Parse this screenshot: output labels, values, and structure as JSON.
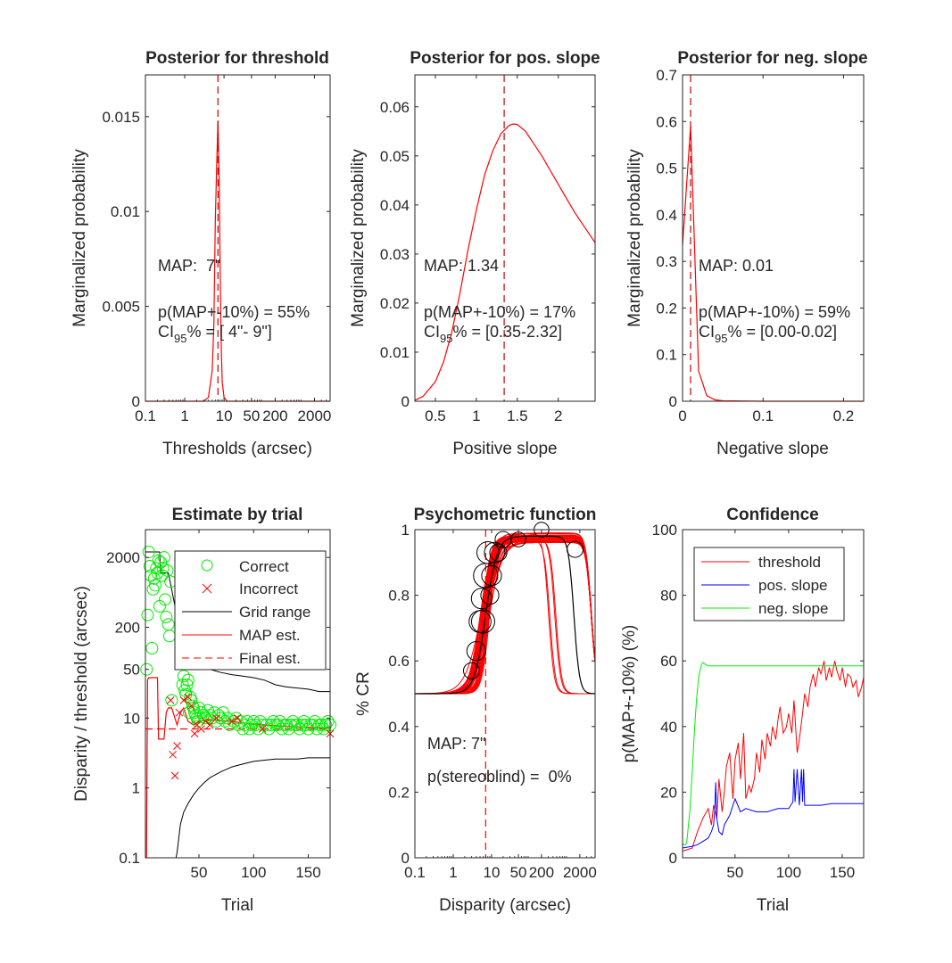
{
  "chart_data": [
    {
      "type": "line",
      "title": "Posterior for threshold",
      "xlabel": "Thresholds (arcsec)",
      "ylabel": "Marginalized probability",
      "xscale": "log",
      "xlim": [
        0.1,
        5000
      ],
      "ylim": [
        0,
        0.0172
      ],
      "xticks": [
        0.1,
        1,
        10,
        50,
        200,
        2000
      ],
      "xticklabels": [
        "0.1",
        "1",
        "10",
        "50",
        "200",
        "2000"
      ],
      "yticks": [
        0,
        0.005,
        0.01,
        0.015
      ],
      "yticklabels": [
        "0",
        "0.005",
        "0.01",
        "0.015"
      ],
      "series": [
        {
          "color": "#ff0000",
          "x": [
            0.1,
            1,
            3,
            4,
            5,
            5.5,
            6,
            6.5,
            7,
            7.5,
            8,
            8.5,
            9,
            10,
            12,
            20,
            100,
            5000
          ],
          "y": [
            0,
            0,
            0,
            0.0002,
            0.0016,
            0.004,
            0.0095,
            0.0125,
            0.0148,
            0.0118,
            0.0068,
            0.0028,
            0.001,
            0.0002,
            0,
            0,
            0,
            0
          ]
        }
      ],
      "vline": {
        "x": 7,
        "color": "#cc0000",
        "style": "dashed"
      },
      "annotations": {
        "map": "MAP:  7\"",
        "pmap": "p(MAP+-10%) = 55%",
        "ci_prefix": "CI",
        "ci_sub": "95",
        "ci_rest": "% = [ 4\"- 9\"]"
      },
      "grid": false
    },
    {
      "type": "line",
      "title": "Posterior for pos. slope",
      "xlabel": "Positive slope",
      "ylabel": "Marginalized probability",
      "xscale": "linear",
      "xlim": [
        0.25,
        2.45
      ],
      "ylim": [
        0,
        0.0665
      ],
      "xticks": [
        0.5,
        1,
        1.5,
        2
      ],
      "xticklabels": [
        "0.5",
        "1",
        "1.5",
        "2"
      ],
      "yticks": [
        0,
        0.01,
        0.02,
        0.03,
        0.04,
        0.05,
        0.06
      ],
      "yticklabels": [
        "0",
        "0.01",
        "0.02",
        "0.03",
        "0.04",
        "0.05",
        "0.06"
      ],
      "series": [
        {
          "color": "#ff0000",
          "x": [
            0.25,
            0.35,
            0.5,
            0.6,
            0.7,
            0.8,
            0.9,
            1.0,
            1.1,
            1.2,
            1.3,
            1.4,
            1.45,
            1.5,
            1.6,
            1.8,
            2.0,
            2.2,
            2.45
          ],
          "y": [
            0.0002,
            0.001,
            0.004,
            0.008,
            0.014,
            0.022,
            0.031,
            0.039,
            0.046,
            0.051,
            0.0545,
            0.0562,
            0.0565,
            0.0564,
            0.055,
            0.05,
            0.0442,
            0.0385,
            0.0323
          ]
        }
      ],
      "vline": {
        "x": 1.34,
        "color": "#cc0000",
        "style": "dashed"
      },
      "annotations": {
        "map": "MAP: 1.34",
        "pmap": "p(MAP+-10%) = 17%",
        "ci_prefix": "CI",
        "ci_sub": "95",
        "ci_rest": "% = [0.35-2.32]"
      },
      "grid": false
    },
    {
      "type": "line",
      "title": "Posterior for neg. slope",
      "xlabel": "Negative slope",
      "ylabel": "Marginalized probability",
      "xscale": "linear",
      "xlim": [
        0,
        0.225
      ],
      "ylim": [
        0,
        0.7
      ],
      "xticks": [
        0,
        0.1,
        0.2
      ],
      "xticklabels": [
        "0",
        "0.1",
        "0.2"
      ],
      "yticks": [
        0,
        0.1,
        0.2,
        0.3,
        0.4,
        0.5,
        0.6,
        0.7
      ],
      "yticklabels": [
        "0",
        "0.1",
        "0.2",
        "0.3",
        "0.4",
        "0.5",
        "0.6",
        "0.7"
      ],
      "series": [
        {
          "color": "#ff0000",
          "x": [
            0,
            0.01,
            0.02,
            0.03,
            0.04,
            0.05,
            0.1,
            0.225
          ],
          "y": [
            0.335,
            0.59,
            0.065,
            0.012,
            0.003,
            0.001,
            0,
            0
          ]
        }
      ],
      "vline": {
        "x": 0.01,
        "color": "#cc0000",
        "style": "dashed"
      },
      "annotations": {
        "map": "MAP: 0.01",
        "pmap": "p(MAP+-10%) = 59%",
        "ci_prefix": "CI",
        "ci_sub": "95",
        "ci_rest": "% = [0.00-0.02]"
      },
      "grid": false
    },
    {
      "type": "line",
      "title": "Estimate by trial",
      "xlabel": "Trial",
      "ylabel": "Disparity / threshold (arcsec)",
      "xscale": "linear",
      "yscale": "log",
      "xlim": [
        1,
        170
      ],
      "ylim": [
        0.1,
        5000
      ],
      "xticks": [
        50,
        100,
        150
      ],
      "xticklabels": [
        "50",
        "100",
        "150"
      ],
      "yticks": [
        0.1,
        1,
        10,
        50,
        200,
        2000
      ],
      "yticklabels": [
        "0.1",
        "1",
        "10",
        "50",
        "200",
        "2000"
      ],
      "legend": {
        "placement": "top-right",
        "entries": [
          "Correct",
          "Incorrect",
          "Grid range",
          "MAP est.",
          "Final est."
        ]
      },
      "grid_range_upper": {
        "color": "#000000",
        "x": [
          1,
          2,
          14,
          15,
          22,
          25,
          28,
          30,
          33,
          36,
          40,
          45,
          50,
          55,
          60,
          70,
          80,
          90,
          100,
          110,
          120,
          130,
          140,
          150,
          160,
          170
        ],
        "y": [
          2400,
          2400,
          2400,
          1200,
          1200,
          700,
          400,
          250,
          180,
          130,
          90,
          70,
          65,
          55,
          50,
          45,
          42,
          40,
          38,
          35,
          30,
          28,
          27,
          26,
          24,
          24
        ]
      },
      "grid_range_lower": {
        "color": "#000000",
        "x": [
          1,
          2,
          29,
          30,
          33,
          36,
          40,
          45,
          50,
          55,
          60,
          70,
          80,
          90,
          100,
          110,
          120,
          130,
          140,
          150,
          160,
          170
        ],
        "y": [
          0.1,
          0.1,
          0.1,
          0.12,
          0.3,
          0.45,
          0.6,
          0.8,
          1.0,
          1.2,
          1.4,
          1.7,
          2.0,
          2.2,
          2.4,
          2.5,
          2.6,
          2.6,
          2.6,
          2.7,
          2.7,
          2.7
        ]
      },
      "map_est": {
        "color": "#ff0000",
        "x": [
          1,
          2,
          3,
          4,
          12,
          13,
          18,
          20,
          22,
          25,
          28,
          30,
          33,
          36,
          40,
          45,
          50,
          60,
          70,
          80,
          90,
          100,
          110,
          120,
          130,
          140,
          150,
          160,
          170
        ],
        "y": [
          0.1,
          0.1,
          35,
          38,
          38,
          5,
          5,
          12,
          14,
          14,
          10,
          8,
          12,
          14,
          9,
          8,
          9,
          9.5,
          9.2,
          9,
          8.5,
          8.2,
          8,
          7.8,
          7.6,
          7.5,
          7.4,
          7.3,
          7.2
        ]
      },
      "final_est": {
        "y": 7,
        "color": "#ff0000",
        "style": "dashed"
      },
      "correct_trials": {
        "color": "#00ee00",
        "x": [
          2,
          3,
          4,
          5,
          6,
          7,
          8,
          9,
          10,
          11,
          12,
          13,
          14,
          15,
          16,
          17,
          18,
          19,
          20,
          21,
          22,
          23,
          24,
          25,
          34,
          35,
          36,
          37,
          38,
          39,
          40,
          41,
          42,
          43,
          44,
          45,
          46,
          47,
          48,
          49,
          50,
          52,
          54,
          56,
          58,
          60,
          62,
          64,
          66,
          68,
          70,
          72,
          74,
          76,
          78,
          82,
          84,
          86,
          88,
          90,
          92,
          94,
          96,
          98,
          100,
          102,
          104,
          106,
          108,
          112,
          114,
          116,
          118,
          120,
          122,
          124,
          126,
          128,
          130,
          132,
          134,
          136,
          138,
          140,
          142,
          144,
          146,
          148,
          150,
          152,
          154,
          156,
          158,
          160,
          162,
          164,
          166,
          168,
          170
        ],
        "y": [
          50,
          300,
          2400,
          1500,
          1100,
          100,
          700,
          1000,
          800,
          1400,
          1200,
          1800,
          400,
          1700,
          1100,
          1400,
          2000,
          500,
          280,
          1300,
          220,
          150,
          900,
          18,
          60,
          30,
          40,
          25,
          22,
          30,
          35,
          12,
          20,
          18,
          15,
          14,
          12,
          11,
          10,
          9,
          14,
          12,
          11,
          10,
          13,
          11,
          10,
          12,
          9,
          11,
          10,
          12,
          9,
          10,
          8,
          9,
          10,
          8,
          9,
          7,
          8,
          9,
          7,
          8,
          9,
          8,
          7,
          9,
          8,
          8,
          7,
          8,
          9,
          8,
          8,
          9,
          7,
          8,
          8,
          7,
          8,
          9,
          8,
          8,
          7,
          8,
          9,
          8,
          7,
          8,
          8,
          9,
          7,
          8,
          8,
          7,
          8,
          9,
          8
        ]
      },
      "incorrect_trials": {
        "color": "#ff0000",
        "x": [
          24,
          26,
          28,
          30,
          32,
          36,
          40,
          43,
          46,
          48,
          52,
          56,
          60,
          66,
          80,
          85,
          108,
          170
        ],
        "y": [
          18,
          3,
          1.5,
          4,
          12,
          18,
          20,
          15,
          6,
          8,
          7,
          9,
          8,
          10,
          9,
          10,
          7,
          6
        ]
      },
      "grid": false
    },
    {
      "type": "line",
      "title": "Psychometric function",
      "xlabel": "Disparity (arcsec)",
      "ylabel": "% CR",
      "xscale": "log",
      "xlim": [
        0.1,
        5000
      ],
      "ylim": [
        0,
        1
      ],
      "xticks": [
        0.1,
        1,
        10,
        50,
        200,
        2000
      ],
      "xticklabels": [
        "0.1",
        "1",
        "10",
        "50",
        "200",
        "2000"
      ],
      "yticks": [
        0,
        0.2,
        0.4,
        0.6,
        0.8,
        1
      ],
      "yticklabels": [
        "0",
        "0.2",
        "0.4",
        "0.6",
        "0.8",
        "1"
      ],
      "map_curve": {
        "threshold": 7,
        "slope": 1.34,
        "lower_asymptote": 0.5,
        "upper_asymptote": 0.98,
        "color": "#000000"
      },
      "samples": {
        "color": "#ff0000",
        "count": 40
      },
      "data_points": {
        "color": "#000000",
        "x": [
          3,
          4,
          5,
          5.5,
          6,
          7,
          8,
          9,
          10,
          12,
          15,
          20,
          50,
          200,
          1500
        ],
        "y": [
          0.57,
          0.63,
          0.72,
          0.79,
          0.72,
          0.86,
          0.93,
          0.8,
          0.86,
          0.93,
          0.93,
          0.97,
          0.97,
          1.0,
          0.94
        ],
        "n": [
          3,
          6,
          10,
          8,
          12,
          14,
          10,
          5,
          7,
          8,
          4,
          3,
          2,
          2,
          3
        ]
      },
      "vline": {
        "x": 7,
        "color": "#ff0000",
        "style": "dashed"
      },
      "annotations": {
        "map": "MAP: 7\"",
        "stereoblind": "p(stereoblind) =  0%"
      },
      "grid": false
    },
    {
      "type": "line",
      "title": "Confidence",
      "xlabel": "Trial",
      "ylabel": "p(MAP+-10%) (%)",
      "xscale": "linear",
      "xlim": [
        1,
        170
      ],
      "ylim": [
        0,
        100
      ],
      "xticks": [
        50,
        100,
        150
      ],
      "xticklabels": [
        "50",
        "100",
        "150"
      ],
      "yticks": [
        0,
        20,
        40,
        60,
        80,
        100
      ],
      "yticklabels": [
        "0",
        "20",
        "40",
        "60",
        "80",
        "100"
      ],
      "legend": {
        "placement": "top-left",
        "entries": [
          "threshold",
          "pos. slope",
          "neg. slope"
        ]
      },
      "series": [
        {
          "name": "threshold",
          "color": "#ff0000",
          "x": [
            1,
            10,
            15,
            20,
            25,
            28,
            30,
            33,
            35,
            38,
            40,
            42,
            45,
            48,
            50,
            53,
            55,
            58,
            60,
            63,
            65,
            68,
            70,
            73,
            75,
            78,
            80,
            83,
            85,
            88,
            90,
            92,
            95,
            98,
            100,
            103,
            105,
            108,
            110,
            113,
            115,
            118,
            120,
            123,
            125,
            128,
            130,
            133,
            135,
            138,
            140,
            143,
            145,
            148,
            150,
            153,
            155,
            158,
            160,
            163,
            165,
            168,
            170
          ],
          "y": [
            2,
            3,
            8,
            12,
            15,
            10,
            16,
            12,
            24,
            14,
            20,
            28,
            32,
            18,
            30,
            35,
            24,
            38,
            18,
            22,
            20,
            24,
            32,
            26,
            36,
            30,
            38,
            34,
            40,
            36,
            42,
            46,
            38,
            40,
            44,
            38,
            48,
            32,
            36,
            44,
            50,
            46,
            52,
            56,
            52,
            58,
            56,
            60,
            54,
            58,
            55,
            60,
            57,
            54,
            58,
            52,
            56,
            55,
            52,
            54,
            49,
            52,
            55
          ]
        },
        {
          "name": "pos. slope",
          "color": "#0000ff",
          "x": [
            1,
            10,
            15,
            20,
            25,
            28,
            30,
            31,
            32,
            33,
            35,
            38,
            40,
            45,
            50,
            55,
            60,
            70,
            80,
            90,
            100,
            104,
            105,
            106,
            108,
            110,
            112,
            113,
            114,
            115,
            118,
            120,
            130,
            140,
            150,
            160,
            170
          ],
          "y": [
            3,
            3.5,
            4,
            5,
            6,
            8,
            10,
            14,
            23,
            12,
            8,
            7,
            10,
            13,
            18,
            14,
            15,
            14,
            14,
            15,
            15,
            17,
            27,
            17,
            27,
            16,
            27,
            17,
            27,
            16,
            16,
            16,
            16,
            16.5,
            16.5,
            16.5,
            16.5
          ]
        },
        {
          "name": "neg. slope",
          "color": "#00ee00",
          "x": [
            1,
            4,
            5,
            8,
            10,
            12,
            14,
            16,
            18,
            19,
            20,
            22,
            25,
            30,
            40,
            60,
            80,
            100,
            120,
            140,
            170
          ],
          "y": [
            4,
            4,
            5,
            15,
            26,
            38,
            48,
            55,
            58,
            59,
            59.5,
            59,
            58.5,
            58.5,
            58.5,
            58.5,
            58.5,
            58.5,
            58.5,
            58.5,
            58.5
          ]
        }
      ],
      "grid": false
    }
  ]
}
